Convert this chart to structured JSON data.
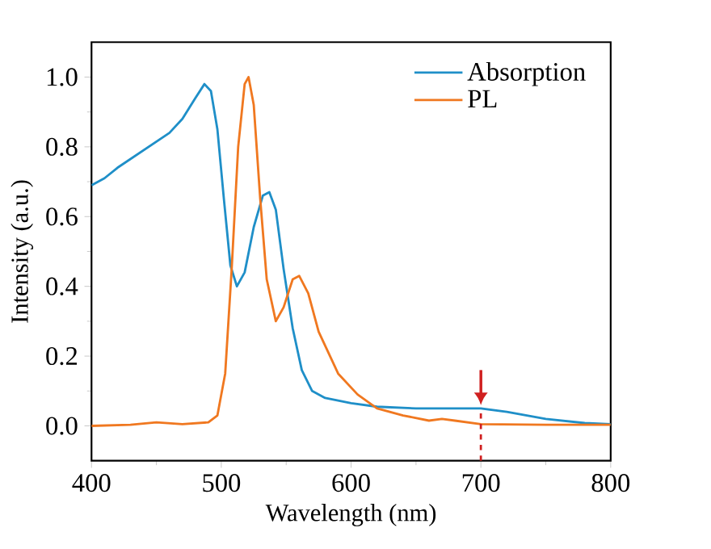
{
  "chart_data": {
    "type": "line",
    "xlabel": "Wavelength (nm)",
    "ylabel": "Intensity (a.u.)",
    "xlim": [
      400,
      800
    ],
    "ylim": [
      -0.1,
      1.1
    ],
    "xticks": [
      400,
      500,
      600,
      700,
      800
    ],
    "yticks": [
      {
        "value": 0,
        "label": "0.0"
      },
      {
        "value": 0.2,
        "label": "0.2"
      },
      {
        "value": 0.4,
        "label": "0.4"
      },
      {
        "value": 0.6,
        "label": "0.6"
      },
      {
        "value": 0.8,
        "label": "0.8"
      },
      {
        "value": 1.0,
        "label": "1.0"
      }
    ],
    "legend": "top right",
    "grid": false,
    "marker": "none",
    "line_style": "solid",
    "series": [
      {
        "name": "Absorption",
        "color": "#1f8fc8",
        "x": [
          400,
          410,
          420,
          440,
          460,
          470,
          480,
          487,
          492,
          497,
          502,
          507,
          512,
          518,
          525,
          532,
          537,
          542,
          548,
          555,
          562,
          570,
          580,
          600,
          620,
          650,
          680,
          700,
          720,
          750,
          780,
          800
        ],
        "values": [
          0.69,
          0.71,
          0.74,
          0.79,
          0.84,
          0.88,
          0.94,
          0.98,
          0.96,
          0.85,
          0.65,
          0.46,
          0.4,
          0.44,
          0.57,
          0.66,
          0.67,
          0.62,
          0.45,
          0.28,
          0.16,
          0.1,
          0.08,
          0.065,
          0.055,
          0.05,
          0.05,
          0.05,
          0.04,
          0.02,
          0.008,
          0.005
        ]
      },
      {
        "name": "PL",
        "color": "#f07820",
        "x": [
          400,
          430,
          450,
          470,
          490,
          497,
          503,
          508,
          513,
          518,
          521,
          525,
          530,
          535,
          542,
          548,
          555,
          560,
          567,
          575,
          590,
          605,
          620,
          640,
          660,
          670,
          680,
          700,
          750,
          800
        ],
        "values": [
          0.0,
          0.003,
          0.01,
          0.005,
          0.01,
          0.03,
          0.15,
          0.45,
          0.8,
          0.98,
          1.0,
          0.92,
          0.65,
          0.42,
          0.3,
          0.34,
          0.42,
          0.43,
          0.38,
          0.27,
          0.15,
          0.09,
          0.05,
          0.03,
          0.015,
          0.02,
          0.015,
          0.005,
          0.003,
          0.003
        ]
      }
    ],
    "ref_lines": [
      {
        "axis": "x",
        "value": 700,
        "color": "#d02020",
        "line_style": "dashed"
      }
    ]
  }
}
